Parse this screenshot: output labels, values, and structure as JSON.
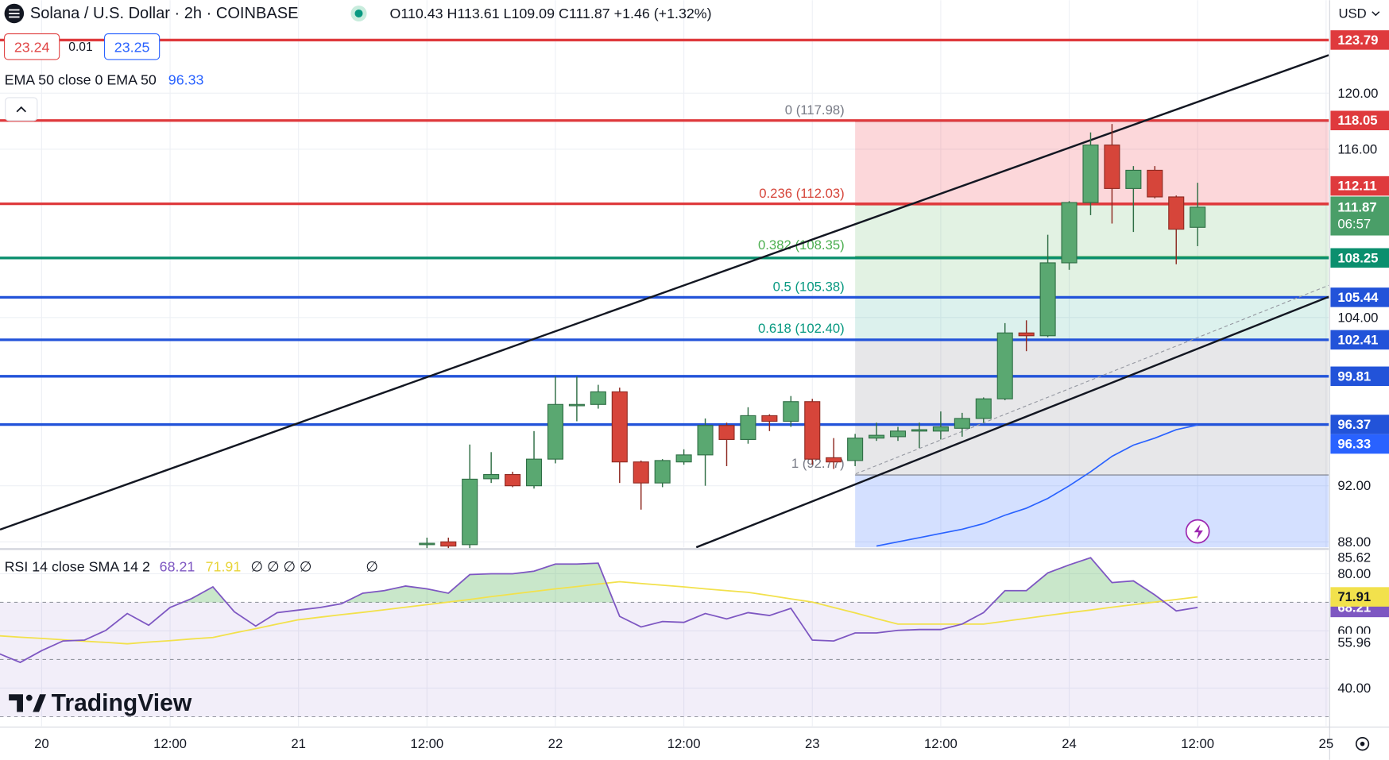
{
  "header": {
    "symbol": "Solana / U.S. Dollar · 2h · COINBASE",
    "ohlc": "O110.43 H113.61 L109.09 C111.87 +1.46 (+1.32%)",
    "bid": "23.24",
    "spread": "0.01",
    "ask": "23.25",
    "currency": "USD"
  },
  "logo": "TradingView",
  "chart_data": [
    {
      "type": "candlestick",
      "x": [
        36,
        38,
        40,
        42,
        44,
        46,
        48,
        50,
        52,
        54,
        56,
        58,
        60,
        62,
        64,
        66,
        68,
        70,
        72,
        74,
        76,
        78,
        80,
        82,
        84,
        86,
        88,
        90,
        92,
        94,
        96,
        98,
        100,
        102,
        104,
        106,
        108
      ],
      "open": [
        87.8,
        88.0,
        87.8,
        92.5,
        92.8,
        92.0,
        93.9,
        97.8,
        97.8,
        98.7,
        93.7,
        92.2,
        93.7,
        94.2,
        96.3,
        95.3,
        97.0,
        96.6,
        98.0,
        94.0,
        93.8,
        95.4,
        95.5,
        95.9,
        95.9,
        96.1,
        96.8,
        98.2,
        102.9,
        102.7,
        107.9,
        112.2,
        116.3,
        113.2,
        114.5,
        112.6,
        110.43
      ],
      "high": [
        88.3,
        88.3,
        94.94,
        94.4,
        93.0,
        95.9,
        99.8,
        99.8,
        99.2,
        99.0,
        93.8,
        93.9,
        94.6,
        96.8,
        96.5,
        97.6,
        97.1,
        98.4,
        98.2,
        95.4,
        95.7,
        96.5,
        96.2,
        96.5,
        97.3,
        97.2,
        98.3,
        103.6,
        103.8,
        109.9,
        112.3,
        117.2,
        117.8,
        114.8,
        114.8,
        112.7,
        113.61
      ],
      "low": [
        87.5,
        87.5,
        87.5,
        92.2,
        91.9,
        91.8,
        93.6,
        96.6,
        97.5,
        92.2,
        90.3,
        91.9,
        93.5,
        92.0,
        93.4,
        95.0,
        95.9,
        96.2,
        93.5,
        93.2,
        93.4,
        95.2,
        95.2,
        94.7,
        95.3,
        95.5,
        96.5,
        98.1,
        101.6,
        102.6,
        107.4,
        111.3,
        110.7,
        110.1,
        112.5,
        107.8,
        109.09
      ],
      "close": [
        87.9,
        87.7,
        92.47,
        92.8,
        92.0,
        93.9,
        97.8,
        97.8,
        98.7,
        93.7,
        92.2,
        93.8,
        94.2,
        96.3,
        95.3,
        97.0,
        96.6,
        98.0,
        93.9,
        93.7,
        95.4,
        95.6,
        95.9,
        96.0,
        96.2,
        96.8,
        98.2,
        102.9,
        102.7,
        107.9,
        112.2,
        116.3,
        113.2,
        114.5,
        112.6,
        110.3,
        111.87
      ],
      "up_color": "#5aa871",
      "down_color": "#d6453a",
      "xlim": [
        -3.89,
        120.25
      ],
      "xticks": [
        {
          "value": 0,
          "label": "20"
        },
        {
          "value": 12,
          "label": "12:00"
        },
        {
          "value": 24,
          "label": "21"
        },
        {
          "value": 36,
          "label": "12:00"
        },
        {
          "value": 48,
          "label": "22"
        },
        {
          "value": 60,
          "label": "12:00"
        },
        {
          "value": 72,
          "label": "23"
        },
        {
          "value": 84,
          "label": "12:00"
        },
        {
          "value": 96,
          "label": "24"
        },
        {
          "value": 108,
          "label": "12:00"
        },
        {
          "value": 120,
          "label": "25"
        }
      ],
      "ylim": [
        87.61,
        126.63
      ],
      "yticks": [
        {
          "value": 88,
          "label": "88.00"
        },
        {
          "value": 92,
          "label": "92.00"
        },
        {
          "value": 104,
          "label": "104.00"
        },
        {
          "value": 116,
          "label": "116.00"
        },
        {
          "value": 120,
          "label": "120.00"
        }
      ],
      "grid": true,
      "levels": [
        {
          "value": 123.79,
          "color": "#df3a3d"
        },
        {
          "value": 118.05,
          "color": "#df3a3d"
        },
        {
          "value": 112.11,
          "color": "#df3a3d"
        },
        {
          "value": 108.25,
          "color": "#0b8f6e"
        },
        {
          "value": 105.44,
          "color": "#2253d9"
        },
        {
          "value": 102.41,
          "color": "#2253d9"
        },
        {
          "value": 99.81,
          "color": "#2253d9"
        },
        {
          "value": 96.37,
          "color": "#2253d9"
        }
      ],
      "last": {
        "value": 111.87,
        "countdown": "06:57",
        "color": "#4a9e68"
      },
      "ema": {
        "name": "EMA 50 close 0 EMA 50",
        "value": 96.33,
        "color": "#2962ff",
        "x": [
          78,
          80,
          82,
          84,
          86,
          88,
          90,
          92,
          94,
          96,
          98,
          100,
          102,
          104,
          106,
          108
        ],
        "values": [
          87.7,
          88.0,
          88.3,
          88.6,
          88.9,
          89.3,
          89.9,
          90.4,
          91.1,
          92.0,
          93.0,
          94.1,
          94.9,
          95.4,
          96.0,
          96.33
        ]
      },
      "fib": {
        "x_start": 76,
        "levels": [
          {
            "label": "0 (117.98)",
            "price": 117.98,
            "color": "#787b86",
            "band": "rgba(242,54,69,0.2)"
          },
          {
            "label": "0.236 (112.03)",
            "price": 112.03,
            "color": "#d6453a",
            "band": "rgba(76,175,80,0.16)"
          },
          {
            "label": "0.382 (108.35)",
            "price": 108.35,
            "color": "#4caf50",
            "band": "rgba(76,175,80,0.16)"
          },
          {
            "label": "0.5 (105.38)",
            "price": 105.38,
            "color": "#089981",
            "band": "rgba(8,153,129,0.14)"
          },
          {
            "label": "0.618 (102.40)",
            "price": 102.4,
            "color": "#089981",
            "band": "rgba(120,123,134,0.18)"
          },
          {
            "label": "1 (92.77)",
            "price": 92.77,
            "color": "#787b86",
            "band": "rgba(41,98,255,0.2)"
          }
        ]
      }
    },
    {
      "type": "line",
      "title": "RSI 14 close SMA 14 2",
      "x": [
        -4,
        -2,
        0,
        2,
        4,
        6,
        8,
        10,
        12,
        14,
        16,
        18,
        20,
        22,
        24,
        26,
        28,
        30,
        32,
        34,
        36,
        38,
        40,
        42,
        44,
        46,
        48,
        50,
        52,
        54,
        56,
        58,
        60,
        62,
        64,
        66,
        68,
        70,
        72,
        74,
        76,
        78,
        80,
        82,
        84,
        86,
        88,
        90,
        92,
        94,
        96,
        98,
        100,
        102,
        104,
        106,
        108
      ],
      "series": [
        {
          "color": "#7e57c2",
          "values": [
            52.1,
            49.0,
            53.1,
            56.5,
            56.8,
            60.2,
            66.1,
            62.0,
            68.2,
            71.3,
            75.4,
            66.7,
            61.7,
            66.4,
            67.3,
            68.2,
            69.5,
            73.2,
            74.1,
            75.7,
            74.7,
            73.2,
            79.7,
            80.0,
            80.0,
            80.9,
            83.4,
            83.4,
            83.7,
            65.1,
            61.4,
            63.3,
            63.0,
            66.1,
            64.2,
            66.4,
            65.4,
            67.9,
            56.8,
            56.5,
            59.3,
            59.3,
            60.2,
            60.5,
            60.5,
            62.4,
            66.4,
            74.1,
            74.1,
            80.3,
            83.1,
            85.6,
            76.9,
            77.5,
            72.6,
            67.0,
            68.21
          ]
        },
        {
          "color": "#f2e14c",
          "values": [
            58.3,
            57.8,
            57.4,
            56.9,
            56.4,
            56.0,
            55.5,
            56.1,
            56.6,
            57.2,
            57.7,
            59.3,
            60.8,
            62.4,
            63.9,
            64.8,
            65.7,
            66.5,
            67.4,
            68.3,
            69.2,
            70.1,
            71.0,
            72.0,
            72.9,
            73.8,
            74.7,
            75.5,
            76.4,
            77.2,
            76.6,
            76.0,
            75.4,
            74.7,
            74.1,
            73.5,
            72.4,
            71.2,
            70.1,
            68.2,
            66.3,
            64.3,
            62.4,
            62.4,
            62.4,
            62.4,
            62.4,
            63.4,
            64.4,
            65.4,
            66.4,
            67.3,
            68.3,
            69.2,
            70.1,
            71.0,
            71.91
          ]
        }
      ],
      "extra_legend": [
        "∅ ∅ ∅ ∅",
        "∅"
      ],
      "markers": [
        85.62,
        55.96
      ],
      "bands": [
        70,
        50,
        30
      ],
      "xlim": [
        -3.89,
        120.25
      ],
      "ylim": [
        26.7,
        88.0
      ],
      "yticks": [
        {
          "value": 80,
          "label": "80.00"
        },
        {
          "value": 60,
          "label": "60.00"
        },
        {
          "value": 40,
          "label": "40.00"
        }
      ]
    }
  ]
}
